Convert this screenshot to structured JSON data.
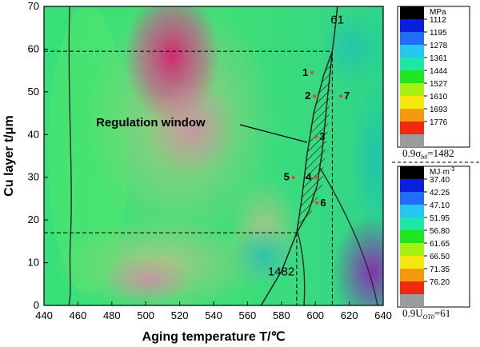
{
  "chart_data": {
    "type": "heatmap",
    "xlabel": "Aging temperature T/℃",
    "ylabel": "Cu layer t/μm",
    "xlim": [
      440,
      640
    ],
    "ylim": [
      0,
      70
    ],
    "xticks": [
      "440",
      "460",
      "480",
      "500",
      "520",
      "540",
      "560",
      "580",
      "600",
      "620",
      "640"
    ],
    "yticks": [
      "0",
      "10",
      "20",
      "30",
      "40",
      "50",
      "60",
      "70"
    ],
    "annotation": "Regulation window",
    "contour_labels": [
      {
        "text": "61",
        "x": 609,
        "y": 66
      },
      {
        "text": "1482",
        "x": 572,
        "y": 7
      }
    ],
    "dashed_lines": {
      "h": [
        59.5,
        17.0
      ],
      "v": [
        589,
        610
      ]
    },
    "points": [
      {
        "label": "1",
        "x": 598,
        "y": 54.5
      },
      {
        "label": "2",
        "x": 599.5,
        "y": 49
      },
      {
        "label": "3",
        "x": 600.5,
        "y": 39.5
      },
      {
        "label": "4",
        "x": 600,
        "y": 30
      },
      {
        "label": "5",
        "x": 587,
        "y": 30
      },
      {
        "label": "6",
        "x": 601,
        "y": 24
      },
      {
        "label": "7",
        "x": 615,
        "y": 49
      }
    ],
    "colorbars": [
      {
        "unit": "MPa",
        "ticks": [
          "1112",
          "1195",
          "1278",
          "1361",
          "1444",
          "1527",
          "1610",
          "1693",
          "1776"
        ],
        "colors": [
          "#000000",
          "#0a1ee0",
          "#1f6ef5",
          "#24c8f0",
          "#1ee8a8",
          "#20e622",
          "#a8ef12",
          "#f5e80f",
          "#f59a0e",
          "#ef2a0e",
          "#9b9b9b"
        ],
        "threshold": "0.9σ",
        "threshold_sub": "b0",
        "threshold_value": "=1482"
      },
      {
        "unit": "MJ·m",
        "unit_sup": "-3",
        "ticks": [
          "37.40",
          "42.25",
          "47.10",
          "51.95",
          "56.80",
          "61.65",
          "66.50",
          "71.35",
          "76.20"
        ],
        "colors": [
          "#000000",
          "#0a1ee0",
          "#1f6ef5",
          "#24c8f0",
          "#1ee8a8",
          "#20e622",
          "#a8ef12",
          "#f5e80f",
          "#f59a0e",
          "#ef2a0e",
          "#9b9b9b"
        ],
        "threshold": "0.9U",
        "threshold_sub": "OT0",
        "threshold_value": "=61"
      }
    ]
  }
}
